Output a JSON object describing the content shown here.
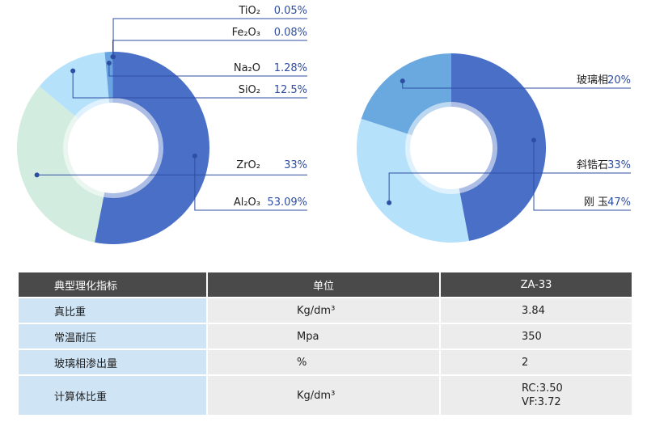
{
  "chart_data": [
    {
      "type": "pie",
      "subtype": "donut",
      "labels": [
        "Al2O3",
        "ZrO2",
        "SiO2",
        "Na2O",
        "Fe2O3",
        "TiO2"
      ],
      "display_names": [
        "Al₂O₃",
        "ZrO₂",
        "SiO₂",
        "Na₂O",
        "Fe₂O₃",
        "TiO₂"
      ],
      "values": [
        53.09,
        33,
        12.5,
        1.28,
        0.08,
        0.05
      ],
      "value_labels": [
        "53.09%",
        "33%",
        "12.5%",
        "1.28%",
        "0.08%",
        "0.05%"
      ],
      "colors": [
        "#4a6fc7",
        "#d2ecdf",
        "#b5e1fb",
        "#6aa4e0",
        "#4466bb",
        "#3f5fb5"
      ]
    },
    {
      "type": "pie",
      "subtype": "donut",
      "labels": [
        "刚 玉",
        "斜锆石",
        "玻璃相"
      ],
      "values": [
        47,
        33,
        20
      ],
      "value_labels": [
        "47%",
        "33%",
        "20%"
      ],
      "colors": [
        "#4a6fc7",
        "#b5e1fb",
        "#6aa9df"
      ]
    }
  ],
  "table": {
    "headers": [
      "典型理化指标",
      "单位",
      "ZA-33"
    ],
    "rows": [
      {
        "name": "真比重",
        "unit": "Kg/dm³",
        "value": "3.84"
      },
      {
        "name": "常温耐压",
        "unit": "Mpa",
        "value": "350"
      },
      {
        "name": "玻璃相渗出量",
        "unit": "%",
        "value": "2"
      },
      {
        "name": "计算体比重",
        "unit": "Kg/dm³",
        "value": "RC:3.50",
        "value2": "VF:3.72"
      }
    ]
  }
}
